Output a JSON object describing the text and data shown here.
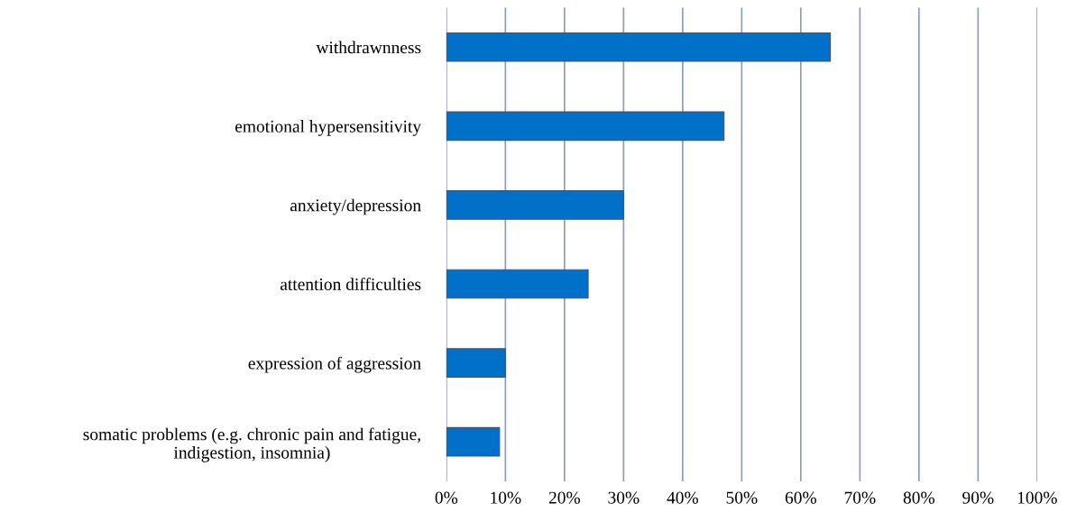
{
  "chart_data": {
    "type": "bar",
    "orientation": "horizontal",
    "categories": [
      "withdrawnness",
      "emotional hypersensitivity",
      "anxiety/depression",
      "attention difficulties",
      "expression of aggression",
      "somatic problems (e.g. chronic pain and fatigue,\nindigestion, insomnia)"
    ],
    "values": [
      0.65,
      0.47,
      0.3,
      0.24,
      0.1,
      0.09
    ],
    "color": "#0070c8",
    "xlim": [
      0,
      1
    ],
    "xticks": [
      {
        "value": 0,
        "label": "0%"
      },
      {
        "value": 0.1,
        "label": "10%"
      },
      {
        "value": 0.2,
        "label": "20%"
      },
      {
        "value": 0.3,
        "label": "30%"
      },
      {
        "value": 0.4,
        "label": "40%"
      },
      {
        "value": 0.5,
        "label": "50%"
      },
      {
        "value": 0.6,
        "label": "60%"
      },
      {
        "value": 0.7,
        "label": "70%"
      },
      {
        "value": 0.8,
        "label": "80%"
      },
      {
        "value": 0.9,
        "label": "90%"
      },
      {
        "value": 1,
        "label": "100%"
      }
    ],
    "grid": "x",
    "legend": false
  }
}
